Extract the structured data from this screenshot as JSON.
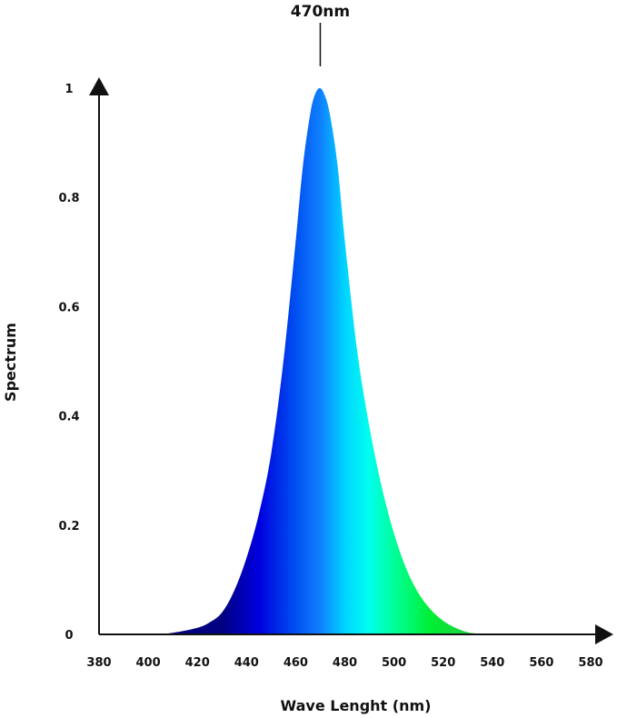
{
  "chart_data": {
    "type": "area",
    "title": "",
    "xlabel": "Wave Lenght (nm)",
    "ylabel": "Spectrum",
    "xlim": [
      380,
      580
    ],
    "ylim": [
      0,
      1
    ],
    "x_ticks": [
      380,
      400,
      420,
      440,
      460,
      480,
      500,
      520,
      540,
      560,
      580
    ],
    "y_ticks": [
      {
        "value": 0,
        "label": "0"
      },
      {
        "value": 0.2,
        "label": "0.2"
      },
      {
        "value": 0.4,
        "label": "0.4"
      },
      {
        "value": 0.6,
        "label": "0.6"
      },
      {
        "value": 0.8,
        "label": "0.8"
      },
      {
        "value": 1,
        "label": "1"
      }
    ],
    "grid": false,
    "legend": "none",
    "annotations": [
      {
        "text": "470nm",
        "x": 470
      }
    ],
    "series": [
      {
        "x": [
          380,
          400,
          410,
          420,
          425,
          430,
          435,
          440,
          445,
          450,
          455,
          460,
          463,
          466,
          468,
          470,
          472,
          474,
          477,
          480,
          485,
          490,
          495,
          500,
          505,
          510,
          515,
          520,
          525,
          530,
          535,
          540,
          560,
          580
        ],
        "y": [
          0,
          0,
          0.003,
          0.012,
          0.022,
          0.04,
          0.08,
          0.14,
          0.22,
          0.33,
          0.5,
          0.72,
          0.86,
          0.955,
          0.99,
          1.0,
          0.985,
          0.95,
          0.86,
          0.72,
          0.52,
          0.38,
          0.27,
          0.185,
          0.12,
          0.075,
          0.045,
          0.025,
          0.012,
          0.004,
          0.001,
          0,
          0,
          0
        ],
        "fill_gradient": [
          {
            "x": 430,
            "color": "#000080"
          },
          {
            "x": 445,
            "color": "#0000e0"
          },
          {
            "x": 460,
            "color": "#0050f0"
          },
          {
            "x": 470,
            "color": "#1080ff"
          },
          {
            "x": 480,
            "color": "#00d4ff"
          },
          {
            "x": 490,
            "color": "#00ffee"
          },
          {
            "x": 500,
            "color": "#00ff99"
          },
          {
            "x": 515,
            "color": "#00ee33"
          },
          {
            "x": 530,
            "color": "#20d040"
          }
        ]
      }
    ],
    "colors": {
      "axis": "#111111",
      "text": "#111111"
    }
  }
}
